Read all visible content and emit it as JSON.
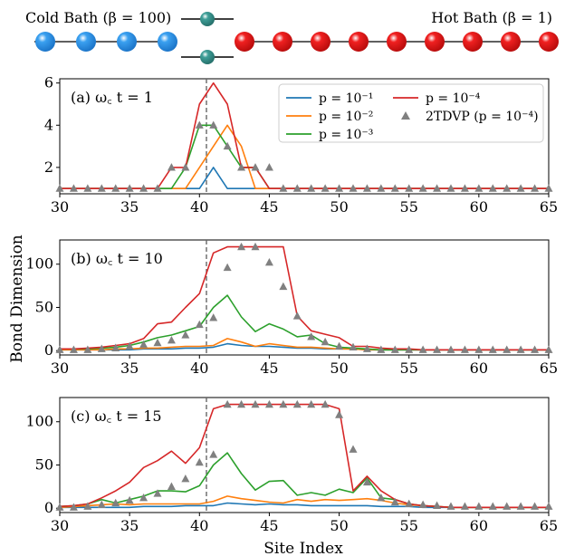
{
  "schematic": {
    "cold_label": "Cold Bath (β = 100)",
    "hot_label": "Hot Bath (β = 1)",
    "cold_count": 4,
    "hot_count": 9,
    "cold_color": "#3aa0f0",
    "hot_color": "#f02020",
    "system_color": "#3f9f98"
  },
  "shared": {
    "ylabel": "Bond Dimension",
    "xlabel": "Site Index",
    "x_ticks": [
      30,
      35,
      40,
      45,
      50,
      55,
      60,
      65
    ],
    "xlim": [
      30,
      65
    ],
    "vline_x": 40.5
  },
  "legend": {
    "entries": [
      {
        "label": "p = 10⁻¹",
        "color": "#1f77b4",
        "kind": "line"
      },
      {
        "label": "p = 10⁻²",
        "color": "#ff7f0e",
        "kind": "line"
      },
      {
        "label": "p = 10⁻³",
        "color": "#2ca02c",
        "kind": "line"
      },
      {
        "label": "p = 10⁻⁴",
        "color": "#d62728",
        "kind": "line"
      },
      {
        "label": "2TDVP (p = 10⁻⁴)",
        "color": "#808080",
        "kind": "marker"
      }
    ]
  },
  "chart_data": [
    {
      "type": "line",
      "panel_label": "(a) ω_c t = 1",
      "ylim": [
        0.75,
        6.2
      ],
      "y_ticks": [
        2,
        4,
        6
      ],
      "x": [
        30,
        31,
        32,
        33,
        34,
        35,
        36,
        37,
        38,
        39,
        40,
        41,
        42,
        43,
        44,
        45,
        46,
        47,
        48,
        49,
        50,
        51,
        52,
        53,
        54,
        55,
        56,
        57,
        58,
        59,
        60,
        61,
        62,
        63,
        64,
        65
      ],
      "series": [
        {
          "name": "p = 10⁻¹",
          "color": "#1f77b4",
          "values": [
            1,
            1,
            1,
            1,
            1,
            1,
            1,
            1,
            1,
            1,
            1,
            2,
            1,
            1,
            1,
            1,
            1,
            1,
            1,
            1,
            1,
            1,
            1,
            1,
            1,
            1,
            1,
            1,
            1,
            1,
            1,
            1,
            1,
            1,
            1,
            1
          ]
        },
        {
          "name": "p = 10⁻²",
          "color": "#ff7f0e",
          "values": [
            1,
            1,
            1,
            1,
            1,
            1,
            1,
            1,
            1,
            1,
            2,
            3,
            4,
            3,
            1,
            1,
            1,
            1,
            1,
            1,
            1,
            1,
            1,
            1,
            1,
            1,
            1,
            1,
            1,
            1,
            1,
            1,
            1,
            1,
            1,
            1
          ]
        },
        {
          "name": "p = 10⁻³",
          "color": "#2ca02c",
          "values": [
            1,
            1,
            1,
            1,
            1,
            1,
            1,
            1,
            1,
            2,
            4,
            4,
            3,
            2,
            2,
            1,
            1,
            1,
            1,
            1,
            1,
            1,
            1,
            1,
            1,
            1,
            1,
            1,
            1,
            1,
            1,
            1,
            1,
            1,
            1,
            1
          ]
        },
        {
          "name": "p = 10⁻⁴",
          "color": "#d62728",
          "values": [
            1,
            1,
            1,
            1,
            1,
            1,
            1,
            1,
            2,
            2,
            5,
            6,
            5,
            2,
            2,
            1,
            1,
            1,
            1,
            1,
            1,
            1,
            1,
            1,
            1,
            1,
            1,
            1,
            1,
            1,
            1,
            1,
            1,
            1,
            1,
            1
          ]
        }
      ],
      "markers": {
        "name": "2TDVP (p = 10⁻⁴)",
        "color": "#808080",
        "values": [
          1,
          1,
          1,
          1,
          1,
          1,
          1,
          1,
          2,
          2,
          4,
          4,
          3,
          2,
          2,
          2,
          1,
          1,
          1,
          1,
          1,
          1,
          1,
          1,
          1,
          1,
          1,
          1,
          1,
          1,
          1,
          1,
          1,
          1,
          1,
          1
        ]
      }
    },
    {
      "type": "line",
      "panel_label": "(b) ω_c t = 10",
      "ylim": [
        -5,
        128
      ],
      "y_ticks": [
        0,
        50,
        100
      ],
      "x": [
        30,
        31,
        32,
        33,
        34,
        35,
        36,
        37,
        38,
        39,
        40,
        41,
        42,
        43,
        44,
        45,
        46,
        47,
        48,
        49,
        50,
        51,
        52,
        53,
        54,
        55,
        56,
        57,
        58,
        59,
        60,
        61,
        62,
        63,
        64,
        65
      ],
      "series": [
        {
          "name": "p = 10⁻¹",
          "color": "#1f77b4",
          "values": [
            1,
            1,
            1,
            1,
            1,
            1,
            2,
            2,
            2,
            3,
            3,
            4,
            8,
            6,
            5,
            5,
            4,
            3,
            3,
            2,
            2,
            2,
            1,
            1,
            1,
            1,
            1,
            1,
            1,
            1,
            1,
            1,
            1,
            1,
            1,
            1
          ]
        },
        {
          "name": "p = 10⁻²",
          "color": "#ff7f0e",
          "values": [
            1,
            1,
            1,
            1,
            2,
            2,
            3,
            3,
            4,
            5,
            5,
            6,
            14,
            10,
            5,
            8,
            6,
            4,
            4,
            3,
            2,
            2,
            1,
            1,
            1,
            1,
            1,
            1,
            1,
            1,
            1,
            1,
            1,
            1,
            1,
            1
          ]
        },
        {
          "name": "p = 10⁻³",
          "color": "#2ca02c",
          "values": [
            2,
            2,
            2,
            3,
            4,
            6,
            10,
            15,
            18,
            23,
            28,
            50,
            64,
            39,
            22,
            31,
            25,
            16,
            18,
            8,
            4,
            3,
            2,
            1,
            1,
            1,
            1,
            1,
            1,
            1,
            1,
            1,
            1,
            1,
            1,
            1
          ]
        },
        {
          "name": "p = 10⁻⁴",
          "color": "#d62728",
          "values": [
            2,
            2,
            3,
            4,
            6,
            8,
            14,
            31,
            33,
            50,
            66,
            113,
            120,
            120,
            120,
            120,
            120,
            40,
            23,
            19,
            15,
            5,
            5,
            3,
            2,
            2,
            1,
            1,
            1,
            1,
            1,
            1,
            1,
            1,
            1,
            1
          ]
        }
      ],
      "markers": {
        "name": "2TDVP (p = 10⁻⁴)",
        "color": "#808080",
        "values": [
          1,
          1,
          1,
          2,
          3,
          5,
          7,
          9,
          12,
          18,
          30,
          38,
          96,
          120,
          120,
          102,
          74,
          40,
          16,
          10,
          5,
          4,
          2,
          1,
          1,
          1,
          1,
          1,
          1,
          1,
          1,
          1,
          1,
          1,
          1,
          1
        ]
      }
    },
    {
      "type": "line",
      "panel_label": "(c) ω_c t = 15",
      "ylim": [
        -5,
        128
      ],
      "y_ticks": [
        0,
        50,
        100
      ],
      "x": [
        30,
        31,
        32,
        33,
        34,
        35,
        36,
        37,
        38,
        39,
        40,
        41,
        42,
        43,
        44,
        45,
        46,
        47,
        48,
        49,
        50,
        51,
        52,
        53,
        54,
        55,
        56,
        57,
        58,
        59,
        60,
        61,
        62,
        63,
        64,
        65
      ],
      "series": [
        {
          "name": "p = 10⁻¹",
          "color": "#1f77b4",
          "values": [
            1,
            1,
            1,
            1,
            1,
            1,
            2,
            2,
            2,
            3,
            3,
            3,
            6,
            5,
            4,
            5,
            4,
            4,
            3,
            3,
            3,
            3,
            3,
            2,
            2,
            2,
            1,
            1,
            1,
            1,
            1,
            1,
            1,
            1,
            1,
            1
          ]
        },
        {
          "name": "p = 10⁻²",
          "color": "#ff7f0e",
          "values": [
            1,
            2,
            3,
            4,
            5,
            4,
            5,
            5,
            5,
            5,
            5,
            8,
            14,
            11,
            9,
            7,
            6,
            10,
            8,
            10,
            9,
            10,
            11,
            9,
            6,
            4,
            3,
            2,
            1,
            1,
            1,
            1,
            1,
            1,
            1,
            1
          ]
        },
        {
          "name": "p = 10⁻³",
          "color": "#2ca02c",
          "values": [
            2,
            3,
            5,
            10,
            6,
            10,
            14,
            20,
            20,
            19,
            26,
            50,
            64,
            40,
            21,
            31,
            32,
            15,
            18,
            15,
            22,
            18,
            35,
            12,
            10,
            5,
            3,
            2,
            1,
            1,
            1,
            1,
            1,
            1,
            1,
            1
          ]
        },
        {
          "name": "p = 10⁻⁴",
          "color": "#d62728",
          "values": [
            2,
            3,
            5,
            12,
            20,
            30,
            47,
            55,
            66,
            52,
            70,
            115,
            120,
            120,
            120,
            120,
            120,
            120,
            120,
            120,
            115,
            20,
            37,
            20,
            10,
            5,
            3,
            2,
            1,
            1,
            1,
            1,
            1,
            1,
            1,
            1
          ]
        }
      ],
      "markers": {
        "name": "2TDVP (p = 10⁻⁴)",
        "color": "#808080",
        "values": [
          1,
          1,
          2,
          4,
          6,
          9,
          12,
          17,
          25,
          34,
          53,
          62,
          120,
          120,
          120,
          120,
          120,
          120,
          120,
          120,
          108,
          68,
          30,
          12,
          7,
          5,
          4,
          3,
          2,
          2,
          2,
          2,
          2,
          2,
          2,
          2
        ]
      }
    }
  ]
}
